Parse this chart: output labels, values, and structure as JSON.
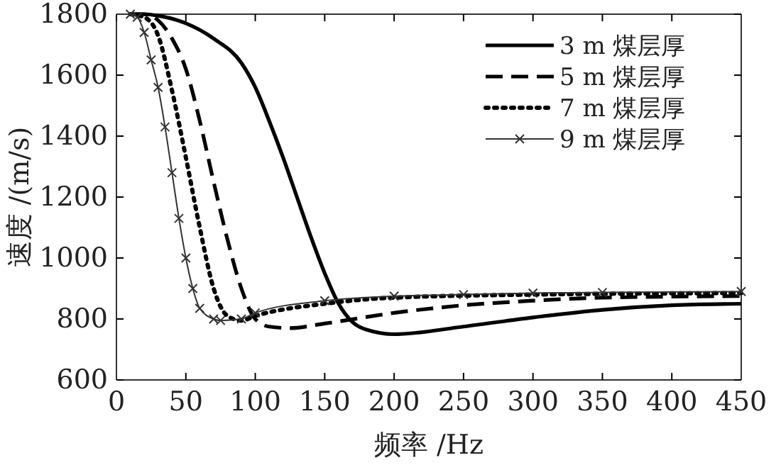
{
  "chart_data": {
    "type": "line",
    "xlabel": "频率 /Hz",
    "ylabel": "速度 /(m/s)",
    "xlim": [
      0,
      450
    ],
    "xticks": [
      0,
      50,
      100,
      150,
      200,
      250,
      300,
      350,
      400,
      450
    ],
    "ylim": [
      600,
      1800
    ],
    "yticks": [
      600,
      800,
      1000,
      1200,
      1400,
      1600,
      1800
    ],
    "grid": false,
    "legend": "top right",
    "series": [
      {
        "name": "3 m 煤层厚",
        "color": "#000000",
        "line_style": "solid",
        "marker": "none",
        "x": [
          10,
          20,
          30,
          50,
          70,
          90,
          100,
          110,
          120,
          130,
          140,
          150,
          160,
          170,
          180,
          200,
          250,
          300,
          350,
          400,
          450
        ],
        "values": [
          1800,
          1800,
          1795,
          1770,
          1720,
          1640,
          1560,
          1450,
          1330,
          1200,
          1070,
          950,
          850,
          790,
          765,
          750,
          775,
          805,
          830,
          845,
          850
        ]
      },
      {
        "name": "5 m 煤层厚",
        "color": "#000000",
        "line_style": "dashed",
        "marker": "none",
        "x": [
          10,
          20,
          30,
          40,
          50,
          60,
          70,
          80,
          90,
          100,
          110,
          125,
          150,
          200,
          250,
          300,
          350,
          450
        ],
        "values": [
          1800,
          1800,
          1780,
          1720,
          1620,
          1450,
          1250,
          1060,
          900,
          800,
          775,
          770,
          785,
          820,
          845,
          860,
          870,
          875
        ]
      },
      {
        "name": "7 m 煤层厚",
        "color": "#000000",
        "line_style": "dotted",
        "marker": "none",
        "x": [
          10,
          20,
          30,
          40,
          50,
          60,
          70,
          80,
          90,
          100,
          150,
          200,
          300,
          450
        ],
        "values": [
          1800,
          1790,
          1730,
          1550,
          1330,
          1100,
          900,
          810,
          795,
          810,
          850,
          870,
          880,
          885
        ]
      },
      {
        "name": "9 m 煤层厚",
        "color": "#333333",
        "line_style": "solid",
        "marker": "cross",
        "x": [
          10,
          15,
          20,
          25,
          30,
          35,
          40,
          45,
          50,
          55,
          60,
          70,
          75,
          90,
          100,
          150,
          200,
          250,
          300,
          350,
          450
        ],
        "values": [
          1800,
          1790,
          1740,
          1650,
          1560,
          1430,
          1280,
          1130,
          1000,
          900,
          835,
          800,
          795,
          800,
          820,
          860,
          875,
          880,
          885,
          887,
          890
        ]
      }
    ]
  }
}
